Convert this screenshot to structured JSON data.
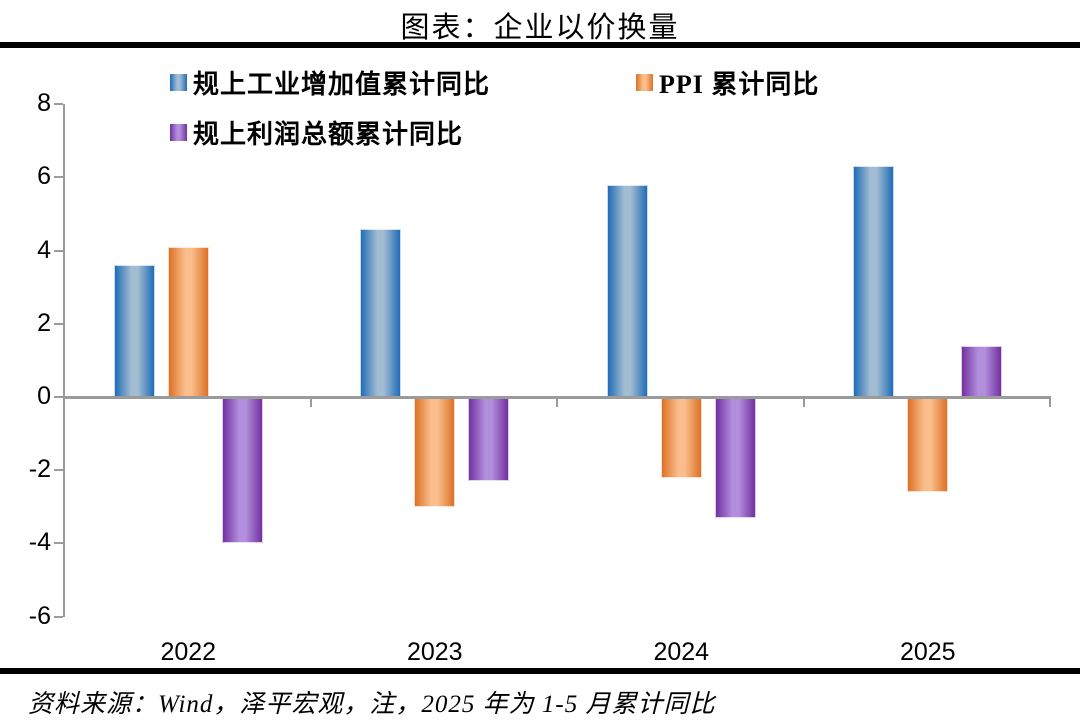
{
  "title": "图表：企业以价换量",
  "legend": {
    "items": [
      {
        "label": "规上工业增加值累计同比"
      },
      {
        "label": "PPI 累计同比"
      },
      {
        "label": "规上利润总额累计同比"
      }
    ]
  },
  "chart_data": {
    "type": "bar",
    "categories": [
      "2022",
      "2023",
      "2024",
      "2025"
    ],
    "series": [
      {
        "name": "规上工业增加值累计同比",
        "values": [
          3.6,
          4.6,
          5.8,
          6.3
        ]
      },
      {
        "name": "PPI 累计同比",
        "values": [
          4.1,
          -3.0,
          -2.2,
          -2.6
        ]
      },
      {
        "name": "规上利润总额累计同比",
        "values": [
          -4.0,
          -2.3,
          -3.3,
          1.4
        ]
      }
    ],
    "ylim": [
      -6,
      8
    ],
    "ytick_step": 2,
    "grid": false,
    "legend_position": "top",
    "title": "图表：企业以价换量",
    "xlabel": "",
    "ylabel": ""
  },
  "colors": {
    "series": [
      {
        "edge": "#1F6DB8",
        "mid": "#A3BCD2"
      },
      {
        "edge": "#DD7226",
        "mid": "#FABE8C"
      },
      {
        "edge": "#7231A0",
        "mid": "#B28FDD"
      }
    ],
    "axis": "#9b9b9b",
    "rule": "#000000"
  },
  "footnote": "资料来源：Wind，泽平宏观，注，2025 年为 1-5 月累计同比"
}
